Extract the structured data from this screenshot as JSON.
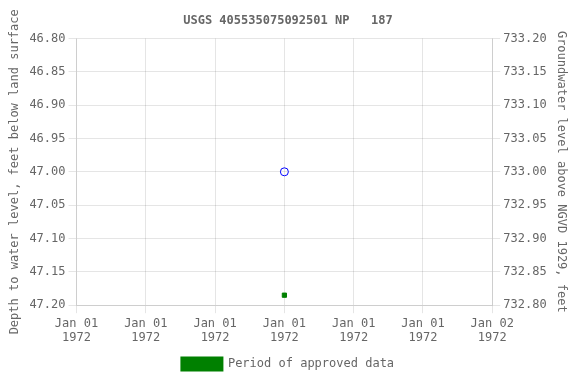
{
  "chart_data": {
    "type": "scatter",
    "title": "USGS 405535075092501 NP   187",
    "ylabel": "Depth to water level, feet below land surface",
    "y2label": "Groundwater level above NGVD 1929, feet",
    "categories": [
      "Jan 01\n1972",
      "Jan 01\n1972",
      "Jan 01\n1972",
      "Jan 01\n1972",
      "Jan 01\n1972",
      "Jan 01\n1972",
      "Jan 02\n1972"
    ],
    "series": [
      {
        "color": "blue",
        "marker": "circle",
        "values": [
          null,
          null,
          null,
          47.0,
          null,
          null,
          null
        ]
      },
      {
        "name": "Period of approved data",
        "color": "green",
        "marker": "square",
        "values": [
          null,
          null,
          null,
          47.185,
          null,
          null,
          null
        ]
      }
    ],
    "ylim": [
      47.2,
      46.8
    ],
    "yticks": [
      {
        "value": 46.8,
        "label": "46.80"
      },
      46.85,
      {
        "value": 46.9,
        "label": "46.90"
      },
      46.95,
      {
        "value": 47.0,
        "label": "47.00"
      },
      47.05,
      {
        "value": 47.1,
        "label": "47.10"
      },
      47.15,
      {
        "value": 47.2,
        "label": "47.20"
      }
    ],
    "y2lim": [
      732.8,
      733.2
    ],
    "y2ticks": [
      {
        "value": 732.8,
        "label": "732.80"
      },
      732.85,
      {
        "value": 732.9,
        "label": "732.90"
      },
      732.95,
      {
        "value": 733.0,
        "label": "733.00"
      },
      733.05,
      {
        "value": 733.1,
        "label": "733.10"
      },
      733.15,
      {
        "value": 733.2,
        "label": "733.20"
      }
    ],
    "grid": true,
    "legend": "bottom"
  }
}
